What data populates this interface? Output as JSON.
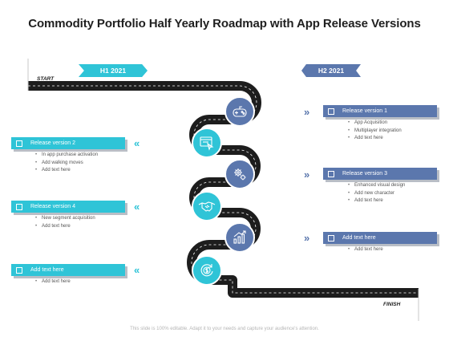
{
  "title": "Commodity Portfolio Half Yearly Roadmap with App Release Versions",
  "halves": {
    "h1": "H1 2021",
    "h2": "H2 2021"
  },
  "start": "START",
  "finish": "FINISH",
  "left_cards": [
    {
      "title": "Release version 2",
      "items": [
        "In app purchase activation",
        "Add walking moves",
        "Add text here"
      ]
    },
    {
      "title": "Release version 4",
      "items": [
        "New segment acquisition",
        "Add text here"
      ]
    },
    {
      "title": "Add text here",
      "items": [
        "Add text here"
      ]
    }
  ],
  "right_cards": [
    {
      "title": "Release version 1",
      "items": [
        "App Acquisition",
        "Multiplayer integration",
        "Add text here"
      ]
    },
    {
      "title": "Release version 3",
      "items": [
        "Enhanced visual design",
        "Add new character",
        "Add text here"
      ]
    },
    {
      "title": "Add text here",
      "items": [
        "Add text here"
      ]
    }
  ],
  "milestone_icons": [
    "gamepad-icon",
    "browser-cursor-icon",
    "gears-icon",
    "handshake-icon",
    "growth-chart-icon",
    "dollar-cycle-icon"
  ],
  "chevron_glyphs": {
    "left": "«",
    "right": "»"
  },
  "footer": "This slide is 100% editable. Adapt it to your needs and capture your audience's attention.",
  "colors": {
    "teal": "#2fc4d7",
    "blue": "#5b77ad",
    "road": "#1d1d1d"
  }
}
